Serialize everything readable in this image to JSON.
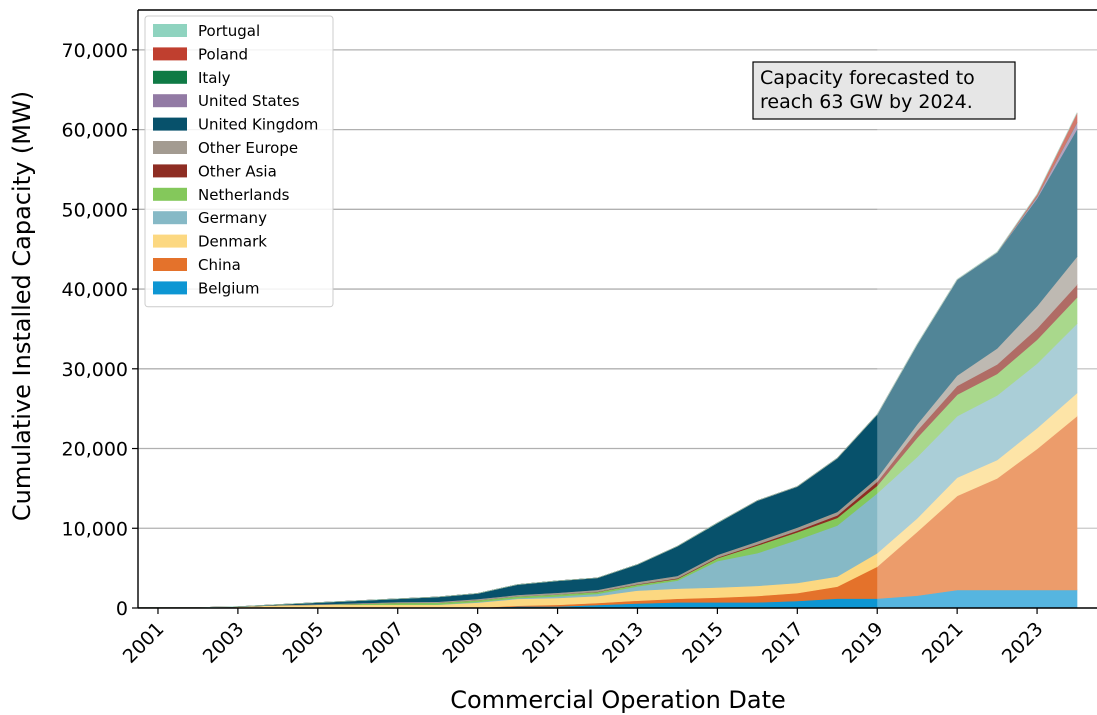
{
  "chart_data": {
    "type": "area",
    "stacked": true,
    "xlabel": "Commercial Operation Date",
    "ylabel": "Cumulative Installed Capacity (MW)",
    "x": [
      2000,
      2001,
      2002,
      2003,
      2004,
      2005,
      2006,
      2007,
      2008,
      2009,
      2010,
      2011,
      2012,
      2013,
      2014,
      2015,
      2016,
      2017,
      2018,
      2019,
      2020,
      2021,
      2022,
      2023,
      2024
    ],
    "x_ticks": [
      "2001",
      "2003",
      "2005",
      "2007",
      "2009",
      "2011",
      "2013",
      "2015",
      "2017",
      "2019",
      "2021",
      "2023"
    ],
    "y_ticks": [
      "0",
      "10,000",
      "20,000",
      "30,000",
      "40,000",
      "50,000",
      "60,000",
      "70,000"
    ],
    "xlim": [
      2000.5,
      2024.5
    ],
    "ylim": [
      0,
      75000
    ],
    "grid": "horizontal",
    "legend_position": "top-left",
    "forecast_from": 2019,
    "series": [
      {
        "name": "Belgium",
        "color": "#0d96d3",
        "values": [
          0,
          0,
          0,
          0,
          0,
          0,
          0,
          0,
          0,
          30,
          195,
          195,
          380,
          571,
          712,
          712,
          712,
          877,
          1186,
          1186,
          1556,
          2262,
          2262,
          2262,
          2262
        ]
      },
      {
        "name": "China",
        "color": "#e4722b",
        "values": [
          0,
          0,
          0,
          0,
          0,
          0,
          0,
          0,
          0,
          0,
          100,
          200,
          250,
          350,
          450,
          600,
          800,
          1000,
          1500,
          4000,
          8000,
          11800,
          14000,
          17700,
          21800
        ]
      },
      {
        "name": "Denmark",
        "color": "#fcd881",
        "values": [
          50,
          50,
          50,
          160,
          350,
          420,
          420,
          420,
          420,
          650,
          850,
          870,
          870,
          1270,
          1270,
          1270,
          1270,
          1270,
          1270,
          1700,
          1700,
          2300,
          2300,
          2600,
          2900
        ]
      },
      {
        "name": "Germany",
        "color": "#86b9c6",
        "values": [
          0,
          0,
          0,
          0,
          0,
          0,
          0,
          0,
          12,
          72,
          92,
          200,
          280,
          520,
          1000,
          3300,
          4100,
          5400,
          6400,
          7500,
          7700,
          7700,
          8100,
          8100,
          8700
        ]
      },
      {
        "name": "Netherlands",
        "color": "#84c85b",
        "values": [
          0,
          0,
          0,
          0,
          0,
          0,
          108,
          228,
          228,
          228,
          228,
          228,
          228,
          228,
          228,
          357,
          957,
          957,
          957,
          957,
          2400,
          2700,
          2700,
          3000,
          3300
        ]
      },
      {
        "name": "Other Asia",
        "color": "#8e2d23",
        "values": [
          0,
          0,
          0,
          0,
          0,
          0,
          0,
          0,
          0,
          0,
          0,
          10,
          30,
          50,
          80,
          100,
          150,
          200,
          300,
          500,
          900,
          1100,
          1200,
          1400,
          1600
        ]
      },
      {
        "name": "Other Europe",
        "color": "#a39b91",
        "values": [
          0,
          0,
          0,
          0,
          20,
          50,
          90,
          110,
          130,
          150,
          180,
          210,
          240,
          270,
          300,
          330,
          360,
          400,
          450,
          500,
          800,
          1300,
          2000,
          2800,
          3500
        ]
      },
      {
        "name": "United Kingdom",
        "color": "#07516b",
        "values": [
          0,
          0,
          0,
          0,
          60,
          210,
          300,
          400,
          600,
          700,
          1300,
          1500,
          1500,
          2200,
          3700,
          4000,
          5100,
          5100,
          6700,
          7900,
          10000,
          12000,
          12000,
          13500,
          16000
        ]
      },
      {
        "name": "United States",
        "color": "#927aa4",
        "values": [
          0,
          0,
          0,
          0,
          0,
          0,
          0,
          0,
          0,
          0,
          0,
          0,
          0,
          0,
          0,
          0,
          30,
          30,
          30,
          30,
          30,
          40,
          40,
          200,
          800
        ]
      },
      {
        "name": "Italy",
        "color": "#0f7a45",
        "values": [
          0,
          0,
          0,
          0,
          0,
          0,
          0,
          0,
          0,
          0,
          0,
          0,
          0,
          0,
          0,
          0,
          0,
          0,
          0,
          0,
          0,
          0,
          30,
          30,
          30
        ]
      },
      {
        "name": "Poland",
        "color": "#c03f2f",
        "values": [
          0,
          0,
          0,
          0,
          0,
          0,
          0,
          0,
          0,
          0,
          0,
          0,
          0,
          0,
          0,
          0,
          0,
          0,
          0,
          0,
          0,
          0,
          0,
          300,
          1200
        ]
      },
      {
        "name": "Portugal",
        "color": "#8fd3bf",
        "values": [
          0,
          0,
          0,
          0,
          0,
          0,
          0,
          0,
          0,
          0,
          0,
          0,
          0,
          0,
          0,
          0,
          0,
          0,
          0,
          0,
          25,
          25,
          25,
          25,
          25
        ]
      }
    ],
    "legend_order": [
      "Portugal",
      "Poland",
      "Italy",
      "United States",
      "United Kingdom",
      "Other Europe",
      "Other Asia",
      "Netherlands",
      "Germany",
      "Denmark",
      "China",
      "Belgium"
    ],
    "annotation": {
      "lines": [
        "Capacity forecasted to",
        "reach 63 GW by 2024."
      ]
    }
  }
}
